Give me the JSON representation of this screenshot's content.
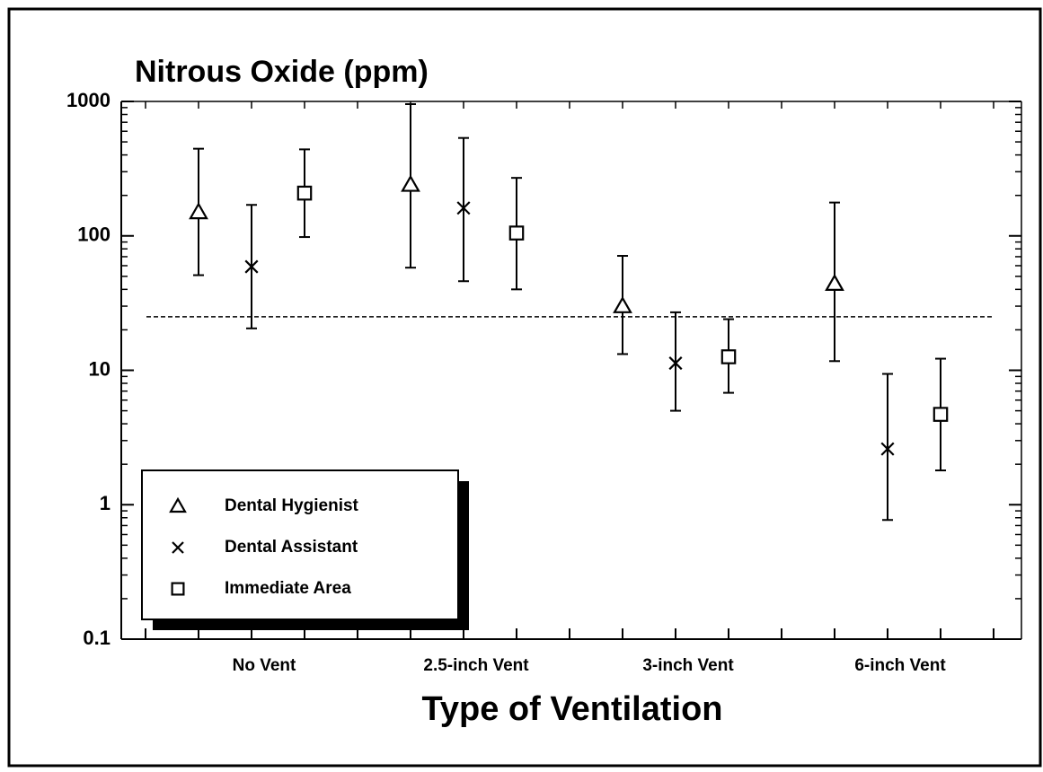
{
  "chart_data": {
    "type": "errorbar",
    "title": "Nitrous Oxide (ppm)",
    "x_label": "Type of Ventilation",
    "categories": [
      "No Vent",
      "2.5-inch Vent",
      "3-inch Vent",
      "6-inch Vent"
    ],
    "series": [
      {
        "name": "Dental Hygienist",
        "marker": "triangle",
        "color": "#000000",
        "values": [
          150,
          240,
          30,
          44
        ],
        "lower": [
          51,
          58,
          13.2,
          11.7
        ],
        "upper": [
          445,
          955,
          71,
          177
        ]
      },
      {
        "name": "Dental Assistant",
        "marker": "x",
        "color": "#000000",
        "values": [
          59,
          161,
          11.3,
          2.6
        ],
        "lower": [
          20.5,
          46,
          5,
          0.77
        ],
        "upper": [
          170,
          535,
          27,
          9.4
        ]
      },
      {
        "name": "Immediate Area",
        "marker": "square",
        "color": "#000000",
        "values": [
          208,
          105,
          12.6,
          4.7
        ],
        "lower": [
          98,
          40,
          6.8,
          1.8
        ],
        "upper": [
          440,
          270,
          24,
          12.2
        ]
      }
    ],
    "reference_line": 25,
    "ylim": [
      0.1,
      1000
    ],
    "yticks": [
      0.1,
      1,
      10,
      100,
      1000
    ],
    "log_scale": true,
    "legend": "lower left"
  }
}
